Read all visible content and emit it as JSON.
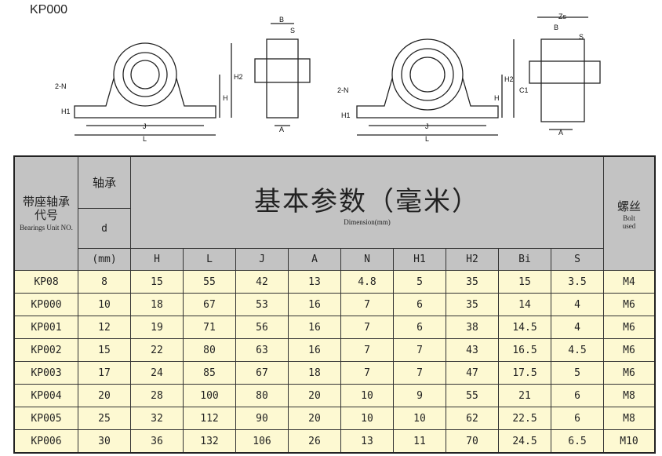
{
  "title": "KP000",
  "drawing_labels": {
    "n": "2-N",
    "h1": "H1",
    "j": "J",
    "l": "L",
    "h2": "H2",
    "h": "H",
    "b": "B",
    "s": "S",
    "a": "A",
    "zs": "Zs",
    "c1": "C1"
  },
  "table": {
    "unit_cn": "带座轴承代号",
    "unit_en": "Bearings Unit NO.",
    "bearing_cn": "轴承",
    "d": "d",
    "mm": "(mm)",
    "dims_cn": "基本参数（毫米）",
    "dims_en": "Dimension(mm)",
    "bolt_cn": "螺丝",
    "bolt_en": "Bolt used",
    "columns": [
      "H",
      "L",
      "J",
      "A",
      "N",
      "H1",
      "H2",
      "Bi",
      "S"
    ],
    "rows": [
      [
        "KP08",
        "8",
        "15",
        "55",
        "42",
        "13",
        "4.8",
        "5",
        "35",
        "15",
        "3.5",
        "M4"
      ],
      [
        "KP000",
        "10",
        "18",
        "67",
        "53",
        "16",
        "7",
        "6",
        "35",
        "14",
        "4",
        "M6"
      ],
      [
        "KP001",
        "12",
        "19",
        "71",
        "56",
        "16",
        "7",
        "6",
        "38",
        "14.5",
        "4",
        "M6"
      ],
      [
        "KP002",
        "15",
        "22",
        "80",
        "63",
        "16",
        "7",
        "7",
        "43",
        "16.5",
        "4.5",
        "M6"
      ],
      [
        "KP003",
        "17",
        "24",
        "85",
        "67",
        "18",
        "7",
        "7",
        "47",
        "17.5",
        "5",
        "M6"
      ],
      [
        "KP004",
        "20",
        "28",
        "100",
        "80",
        "20",
        "10",
        "9",
        "55",
        "21",
        "6",
        "M8"
      ],
      [
        "KP005",
        "25",
        "32",
        "112",
        "90",
        "20",
        "10",
        "10",
        "62",
        "22.5",
        "6",
        "M8"
      ],
      [
        "KP006",
        "30",
        "36",
        "132",
        "106",
        "26",
        "13",
        "11",
        "70",
        "24.5",
        "6.5",
        "M10"
      ]
    ]
  }
}
